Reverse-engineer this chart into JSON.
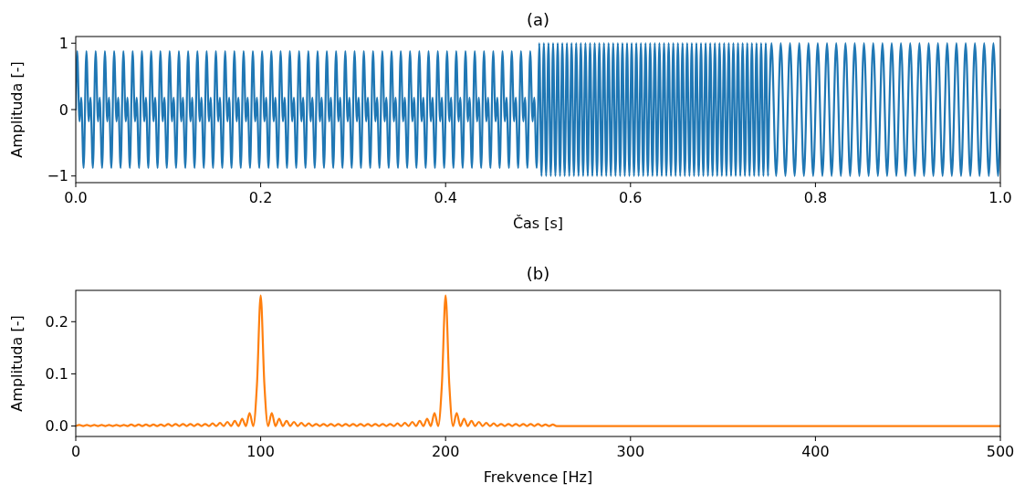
{
  "chart_data": [
    {
      "type": "line",
      "title": "(a)",
      "xlabel": "Čas [s]",
      "ylabel": "Amplituda [-]",
      "xlim": [
        0,
        1
      ],
      "ylim": [
        -1.1,
        1.1
      ],
      "xticks": [
        {
          "value": 0,
          "label": "0.0"
        },
        {
          "value": 0.2,
          "label": "0.2"
        },
        {
          "value": 0.4,
          "label": "0.4"
        },
        {
          "value": 0.6,
          "label": "0.6"
        },
        {
          "value": 0.8,
          "label": "0.8"
        },
        {
          "value": 1,
          "label": "1.0"
        }
      ],
      "yticks": [
        {
          "value": -1,
          "label": "−1"
        },
        0,
        1
      ],
      "x": [
        0,
        0.0015,
        0.0041,
        0.0059,
        0.0085,
        0.0115,
        0.0141,
        0.0159,
        0.0185,
        0.0215,
        0.0241,
        0.0259,
        0.0285,
        0.0315,
        0.0341,
        0.0359,
        0.0385,
        0.0415,
        0.0441,
        0.0459,
        0.0485,
        0.0515,
        0.0541,
        0.0559,
        0.0585,
        0.0615,
        0.0641,
        0.0659,
        0.0685,
        0.0715,
        0.0741,
        0.0759,
        0.0785,
        0.0815,
        0.0841,
        0.0859,
        0.0885,
        0.0915,
        0.0941,
        0.0959,
        0.0985,
        0.1015,
        0.1041,
        0.1059,
        0.1085,
        0.1115,
        0.1141,
        0.1159,
        0.1185,
        0.1215,
        0.1241,
        0.1259,
        0.1285,
        0.1315,
        0.1341,
        0.1359,
        0.1385,
        0.1415,
        0.1441,
        0.1459,
        0.1485,
        0.1515,
        0.1541,
        0.1559,
        0.1585,
        0.1615,
        0.1641,
        0.1659,
        0.1685,
        0.1715,
        0.1741,
        0.1759,
        0.1785,
        0.1815,
        0.1841,
        0.1859,
        0.1885,
        0.1915,
        0.1941,
        0.1959,
        0.1985,
        0.2015,
        0.2041,
        0.2059,
        0.2085,
        0.2115,
        0.2141,
        0.2159,
        0.2185,
        0.2215,
        0.2241,
        0.2259,
        0.2285,
        0.2315,
        0.2341,
        0.2359,
        0.2385,
        0.2415,
        0.2441,
        0.2459,
        0.2485,
        0.2515,
        0.2541,
        0.2559,
        0.2585,
        0.2615,
        0.2641,
        0.2659,
        0.2685,
        0.2715,
        0.2741,
        0.2759,
        0.2785,
        0.2815,
        0.2841,
        0.2859,
        0.2885,
        0.2915,
        0.2941,
        0.2959,
        0.2985,
        0.3015,
        0.3041,
        0.3059,
        0.3085,
        0.3115,
        0.3141,
        0.3159,
        0.3185,
        0.3215,
        0.3241,
        0.3259,
        0.3285,
        0.3315,
        0.3341,
        0.3359,
        0.3385,
        0.3415,
        0.3441,
        0.3459,
        0.3485,
        0.3515,
        0.3541,
        0.3559,
        0.3585,
        0.3615,
        0.3641,
        0.3659,
        0.3685,
        0.3715,
        0.3741,
        0.3759,
        0.3785,
        0.3815,
        0.3841,
        0.3859,
        0.3885,
        0.3915,
        0.3941,
        0.3959,
        0.3985,
        0.4015,
        0.4041,
        0.4059,
        0.4085,
        0.4115,
        0.4141,
        0.4159,
        0.4185,
        0.4215,
        0.4241,
        0.4259,
        0.4285,
        0.4315,
        0.4341,
        0.4359,
        0.4385,
        0.4415,
        0.4441,
        0.4459,
        0.4485,
        0.4515,
        0.4541,
        0.4559,
        0.4585,
        0.4615,
        0.4641,
        0.4659,
        0.4685,
        0.4715,
        0.4741,
        0.4759,
        0.4785,
        0.4815,
        0.4841,
        0.4859,
        0.4885,
        0.4915,
        0.4941,
        0.4959,
        0.4985,
        0.5,
        0.50125,
        0.50375,
        0.50625,
        0.50875,
        0.51125,
        0.51375,
        0.51625,
        0.51875,
        0.52125,
        0.52375,
        0.52625,
        0.52875,
        0.53125,
        0.53375,
        0.53625,
        0.53875,
        0.54125,
        0.54375,
        0.54625,
        0.54875,
        0.55125,
        0.55375,
        0.55625,
        0.55875,
        0.56125,
        0.56375,
        0.56625,
        0.56875,
        0.57125,
        0.57375,
        0.57625,
        0.57875,
        0.58125,
        0.58375,
        0.58625,
        0.58875,
        0.59125,
        0.59375,
        0.59625,
        0.59875,
        0.60125,
        0.60375,
        0.60625,
        0.60875,
        0.61125,
        0.61375,
        0.61625,
        0.61875,
        0.62125,
        0.62375,
        0.62625,
        0.62875,
        0.63125,
        0.63375,
        0.63625,
        0.63875,
        0.64125,
        0.64375,
        0.64625,
        0.64875,
        0.65125,
        0.65375,
        0.65625,
        0.65875,
        0.66125,
        0.66375,
        0.66625,
        0.66875,
        0.67125,
        0.67375,
        0.67625,
        0.67875,
        0.68125,
        0.68375,
        0.68625,
        0.68875,
        0.69125,
        0.69375,
        0.69625,
        0.69875,
        0.70125,
        0.70375,
        0.70625,
        0.70875,
        0.71125,
        0.71375,
        0.71625,
        0.71875,
        0.72125,
        0.72375,
        0.72625,
        0.72875,
        0.73125,
        0.73375,
        0.73625,
        0.73875,
        0.74125,
        0.74375,
        0.74625,
        0.74875,
        0.75,
        0.7525,
        0.7575,
        0.7625,
        0.7675,
        0.7725,
        0.7775,
        0.7825,
        0.7875,
        0.7925,
        0.7975,
        0.8025,
        0.8075,
        0.8125,
        0.8175,
        0.8225,
        0.8275,
        0.8325,
        0.8375,
        0.8425,
        0.8475,
        0.8525,
        0.8575,
        0.8625,
        0.8675,
        0.8725,
        0.8775,
        0.8825,
        0.8875,
        0.8925,
        0.8975,
        0.9025,
        0.9075,
        0.9125,
        0.9175,
        0.9225,
        0.9275,
        0.9325,
        0.9375,
        0.9425,
        0.9475,
        0.9525,
        0.9575,
        0.9625,
        0.9675,
        0.9725,
        0.9775,
        0.9825,
        0.9875,
        0.9925,
        0.9975,
        1
      ],
      "series": [
        {
          "color": "#1f77b4",
          "values": [
            0,
            0.88,
            -0.18,
            0.18,
            -0.88,
            0.88,
            -0.18,
            0.18,
            -0.88,
            0.88,
            -0.18,
            0.18,
            -0.88,
            0.88,
            -0.18,
            0.18,
            -0.88,
            0.88,
            -0.18,
            0.18,
            -0.88,
            0.88,
            -0.18,
            0.18,
            -0.88,
            0.88,
            -0.18,
            0.18,
            -0.88,
            0.88,
            -0.18,
            0.18,
            -0.88,
            0.88,
            -0.18,
            0.18,
            -0.88,
            0.88,
            -0.18,
            0.18,
            -0.88,
            0.88,
            -0.18,
            0.18,
            -0.88,
            0.88,
            -0.18,
            0.18,
            -0.88,
            0.88,
            -0.18,
            0.18,
            -0.88,
            0.88,
            -0.18,
            0.18,
            -0.88,
            0.88,
            -0.18,
            0.18,
            -0.88,
            0.88,
            -0.18,
            0.18,
            -0.88,
            0.88,
            -0.18,
            0.18,
            -0.88,
            0.88,
            -0.18,
            0.18,
            -0.88,
            0.88,
            -0.18,
            0.18,
            -0.88,
            0.88,
            -0.18,
            0.18,
            -0.88,
            0.88,
            -0.18,
            0.18,
            -0.88,
            0.88,
            -0.18,
            0.18,
            -0.88,
            0.88,
            -0.18,
            0.18,
            -0.88,
            0.88,
            -0.18,
            0.18,
            -0.88,
            0.88,
            -0.18,
            0.18,
            -0.88,
            0.88,
            -0.18,
            0.18,
            -0.88,
            0.88,
            -0.18,
            0.18,
            -0.88,
            0.88,
            -0.18,
            0.18,
            -0.88,
            0.88,
            -0.18,
            0.18,
            -0.88,
            0.88,
            -0.18,
            0.18,
            -0.88,
            0.88,
            -0.18,
            0.18,
            -0.88,
            0.88,
            -0.18,
            0.18,
            -0.88,
            0.88,
            -0.18,
            0.18,
            -0.88,
            0.88,
            -0.18,
            0.18,
            -0.88,
            0.88,
            -0.18,
            0.18,
            -0.88,
            0.88,
            -0.18,
            0.18,
            -0.88,
            0.88,
            -0.18,
            0.18,
            -0.88,
            0.88,
            -0.18,
            0.18,
            -0.88,
            0.88,
            -0.18,
            0.18,
            -0.88,
            0.88,
            -0.18,
            0.18,
            -0.88,
            0.88,
            -0.18,
            0.18,
            -0.88,
            0.88,
            -0.18,
            0.18,
            -0.88,
            0.88,
            -0.18,
            0.18,
            -0.88,
            0.88,
            -0.18,
            0.18,
            -0.88,
            0.88,
            -0.18,
            0.18,
            -0.88,
            0.88,
            -0.18,
            0.18,
            -0.88,
            0.88,
            -0.18,
            0.18,
            -0.88,
            0.88,
            -0.18,
            0.18,
            -0.88,
            0.88,
            -0.18,
            0.18,
            -0.88,
            0.88,
            -0.18,
            0.18,
            -0.88,
            0,
            1,
            -1,
            1,
            -1,
            1,
            -1,
            1,
            -1,
            1,
            -1,
            1,
            -1,
            1,
            -1,
            1,
            -1,
            1,
            -1,
            1,
            -1,
            1,
            -1,
            1,
            -1,
            1,
            -1,
            1,
            -1,
            1,
            -1,
            1,
            -1,
            1,
            -1,
            1,
            -1,
            1,
            -1,
            1,
            -1,
            1,
            -1,
            1,
            -1,
            1,
            -1,
            1,
            -1,
            1,
            -1,
            1,
            -1,
            1,
            -1,
            1,
            -1,
            1,
            -1,
            1,
            -1,
            1,
            -1,
            1,
            -1,
            1,
            -1,
            1,
            -1,
            1,
            -1,
            1,
            -1,
            1,
            -1,
            1,
            -1,
            1,
            -1,
            1,
            -1,
            1,
            -1,
            1,
            -1,
            1,
            -1,
            1,
            -1,
            1,
            -1,
            1,
            -1,
            1,
            -1,
            1,
            -1,
            1,
            -1,
            1,
            -1,
            0,
            1,
            -1,
            1,
            -1,
            1,
            -1,
            1,
            -1,
            1,
            -1,
            1,
            -1,
            1,
            -1,
            1,
            -1,
            1,
            -1,
            1,
            -1,
            1,
            -1,
            1,
            -1,
            1,
            -1,
            1,
            -1,
            1,
            -1,
            1,
            -1,
            1,
            -1,
            1,
            -1,
            1,
            -1,
            1,
            -1,
            1,
            -1,
            1,
            -1,
            1,
            -1,
            1,
            -1,
            1,
            -1,
            0
          ]
        }
      ]
    },
    {
      "type": "line",
      "title": "(b)",
      "xlabel": "Frekvence [Hz]",
      "ylabel": "Amplituda [-]",
      "xlim": [
        0,
        500
      ],
      "ylim": [
        -0.02,
        0.26
      ],
      "xticks": [
        0,
        100,
        200,
        300,
        400,
        500
      ],
      "yticks": [
        {
          "value": 0,
          "label": "0.0"
        },
        {
          "value": 0.1,
          "label": "0.1"
        },
        {
          "value": 0.2,
          "label": "0.2"
        }
      ],
      "x": [
        0,
        2,
        4,
        6,
        8,
        10,
        12,
        14,
        16,
        18,
        20,
        22,
        24,
        26,
        28,
        30,
        32,
        34,
        36,
        38,
        40,
        42,
        44,
        46,
        48,
        50,
        52,
        54,
        56,
        58,
        60,
        62,
        64,
        66,
        68,
        70,
        72,
        74,
        76,
        78,
        80,
        82,
        84,
        86,
        88,
        90,
        92,
        94,
        96,
        98,
        100,
        102,
        104,
        106,
        108,
        110,
        112,
        114,
        116,
        118,
        120,
        122,
        124,
        126,
        128,
        130,
        132,
        134,
        136,
        138,
        140,
        142,
        144,
        146,
        148,
        150,
        152,
        154,
        156,
        158,
        160,
        162,
        164,
        166,
        168,
        170,
        172,
        174,
        176,
        178,
        180,
        182,
        184,
        186,
        188,
        190,
        192,
        194,
        196,
        198,
        200,
        202,
        204,
        206,
        208,
        210,
        212,
        214,
        216,
        218,
        220,
        222,
        224,
        226,
        228,
        230,
        232,
        234,
        236,
        238,
        240,
        242,
        244,
        246,
        248,
        250,
        252,
        254,
        256,
        258,
        260,
        300,
        400,
        500
      ],
      "series": [
        {
          "color": "#ff7f0e",
          "values": [
            0,
            0.002,
            0,
            0.002,
            0,
            0.002,
            0,
            0.002,
            0,
            0.002,
            0,
            0.002,
            0,
            0.002,
            0,
            0.003,
            0,
            0.003,
            0,
            0.003,
            0,
            0.003,
            0,
            0.003,
            0,
            0.004,
            0,
            0.004,
            0,
            0.004,
            0,
            0.004,
            0,
            0.004,
            0,
            0.004,
            0,
            0.005,
            0,
            0.006,
            0,
            0.008,
            0,
            0.01,
            0,
            0.014,
            0,
            0.025,
            0,
            0.08,
            0.25,
            0.08,
            0,
            0.025,
            0,
            0.014,
            0,
            0.01,
            0,
            0.008,
            0,
            0.006,
            0,
            0.005,
            0,
            0.004,
            0,
            0.004,
            0,
            0.004,
            0,
            0.004,
            0,
            0.004,
            0,
            0.004,
            0,
            0.004,
            0,
            0.004,
            0,
            0.004,
            0,
            0.004,
            0,
            0.004,
            0,
            0.005,
            0,
            0.006,
            0,
            0.008,
            0,
            0.01,
            0,
            0.014,
            0,
            0.025,
            0,
            0.08,
            0.25,
            0.08,
            0,
            0.025,
            0,
            0.014,
            0,
            0.01,
            0,
            0.008,
            0,
            0.006,
            0,
            0.005,
            0,
            0.004,
            0,
            0.004,
            0,
            0.004,
            0,
            0.004,
            0,
            0.004,
            0,
            0.004,
            0,
            0.003,
            0,
            0.003,
            0,
            0,
            0,
            0
          ]
        }
      ]
    }
  ]
}
